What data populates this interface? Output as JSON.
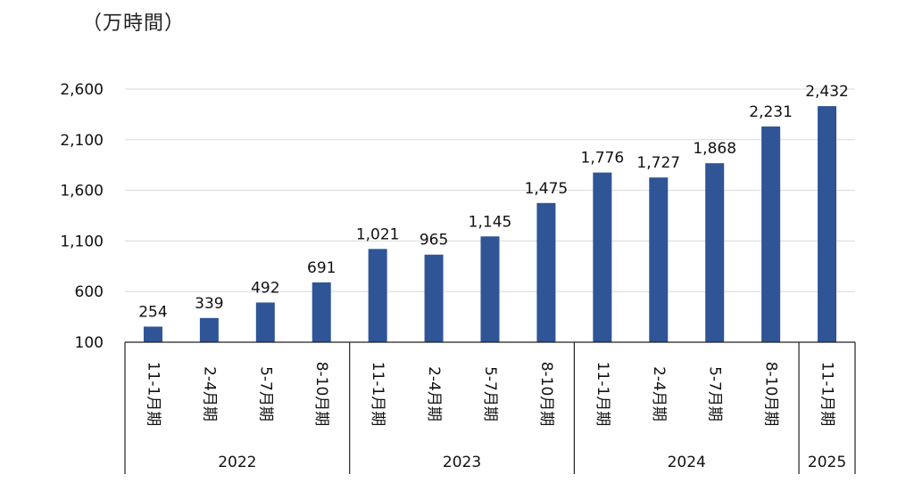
{
  "unit_label": "（万時間）",
  "chart_data": {
    "type": "bar",
    "title": "",
    "xlabel": "",
    "ylabel": "",
    "ylim": [
      100,
      2600
    ],
    "yticks": [
      "100",
      "600",
      "1,100",
      "1,600",
      "2,100",
      "2,600"
    ],
    "ytick_values": [
      100,
      600,
      1100,
      1600,
      2100,
      2600
    ],
    "grid": true,
    "bar_color": "#2f5597",
    "categories": [
      "11-1月期",
      "2-4月期",
      "5-7月期",
      "8-10月期",
      "11-1月期",
      "2-4月期",
      "5-7月期",
      "8-10月期",
      "11-1月期",
      "2-4月期",
      "5-7月期",
      "8-10月期",
      "11-1月期"
    ],
    "values": [
      254,
      339,
      492,
      691,
      1021,
      965,
      1145,
      1475,
      1776,
      1727,
      1868,
      2231,
      2432
    ],
    "value_labels": [
      "254",
      "339",
      "492",
      "691",
      "1,021",
      "965",
      "1,145",
      "1,475",
      "1,776",
      "1,727",
      "1,868",
      "2,231",
      "2,432"
    ],
    "groups": [
      {
        "name": "2022",
        "count": 4
      },
      {
        "name": "2023",
        "count": 4
      },
      {
        "name": "2024",
        "count": 4
      },
      {
        "name": "2025",
        "count": 1
      }
    ]
  }
}
